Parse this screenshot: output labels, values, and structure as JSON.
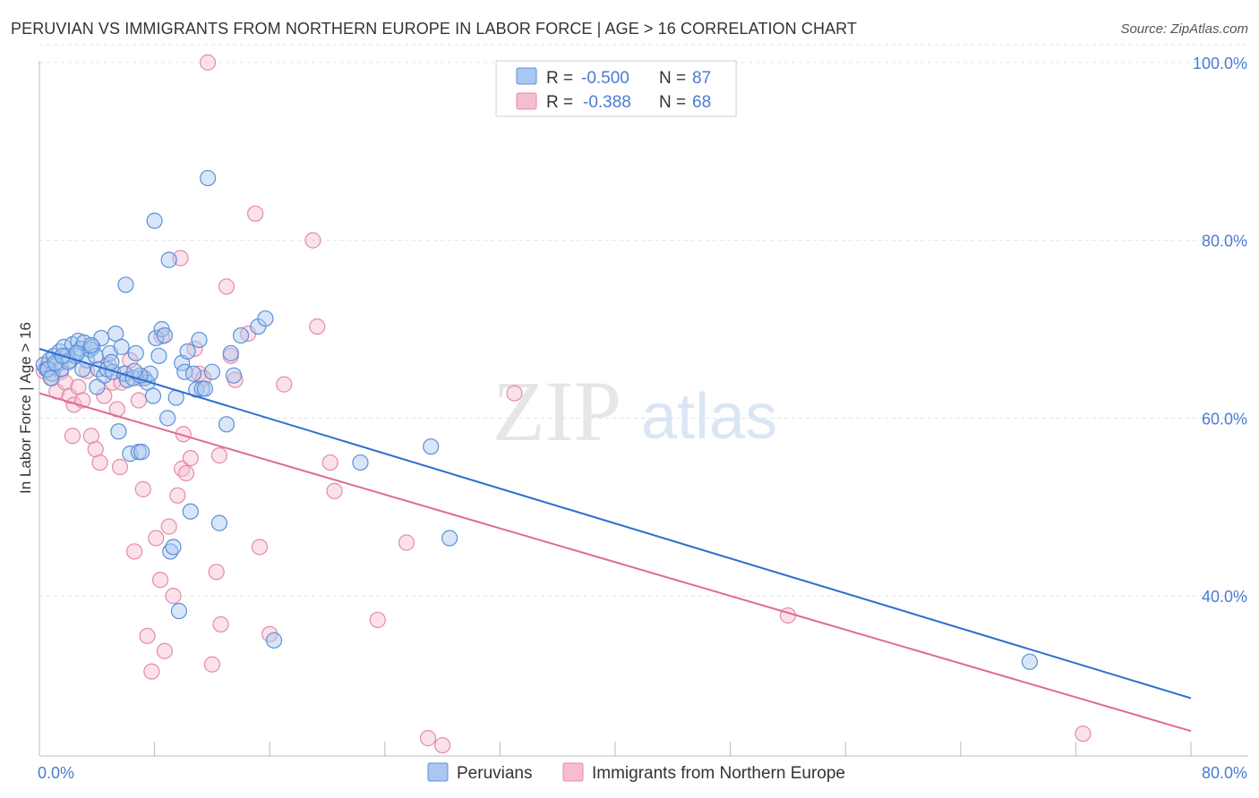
{
  "title": "PERUVIAN VS IMMIGRANTS FROM NORTHERN EUROPE IN LABOR FORCE | AGE > 16 CORRELATION CHART",
  "source": "Source: ZipAtlas.com",
  "watermark": {
    "zip": "ZIP",
    "atlas": "atlas"
  },
  "colors": {
    "peruvian_fill": "#a9c7f0",
    "peruvian_stroke": "#5b8fd8",
    "peruvian_line": "#2a6fd0",
    "immig_fill": "#f6bcd0",
    "immig_stroke": "#e58aab",
    "immig_line": "#e06a95",
    "axis_label": "#4a7bd4"
  },
  "legend": {
    "r_label": "R = ",
    "n_label": "N = ",
    "series": [
      {
        "r": "-0.500",
        "n": "87"
      },
      {
        "r": "-0.388",
        "n": "68"
      }
    ]
  },
  "chart_data": {
    "type": "scatter",
    "title": "PERUVIAN VS IMMIGRANTS FROM NORTHERN EUROPE IN LABOR FORCE | AGE > 16 CORRELATION CHART",
    "xlabel": "",
    "ylabel": "In Labor Force | Age > 16",
    "xlim": [
      0,
      80
    ],
    "ylim": [
      22,
      102
    ],
    "x_tick_labels": [
      "0.0%",
      "80.0%"
    ],
    "y_tick_labels": [
      "100.0%",
      "80.0%",
      "60.0%",
      "40.0%"
    ],
    "y_tick_values": [
      100,
      80,
      60,
      40
    ],
    "grid": true,
    "legend_position": "top-center",
    "series": [
      {
        "name": "Peruvians",
        "trendline": {
          "x": [
            0,
            80
          ],
          "y": [
            67.8,
            28.5
          ]
        },
        "points": [
          [
            0.3,
            66
          ],
          [
            0.5,
            65.5
          ],
          [
            0.7,
            66.5
          ],
          [
            0.9,
            65
          ],
          [
            1.0,
            67
          ],
          [
            1.2,
            66
          ],
          [
            1.4,
            67.5
          ],
          [
            1.5,
            65.5
          ],
          [
            1.7,
            68
          ],
          [
            1.9,
            67
          ],
          [
            2.1,
            66.5
          ],
          [
            2.3,
            68.3
          ],
          [
            2.5,
            67
          ],
          [
            2.7,
            68.7
          ],
          [
            2.9,
            67.8
          ],
          [
            3.1,
            68.5
          ],
          [
            3.3,
            66.5
          ],
          [
            3.5,
            67.7
          ],
          [
            3.7,
            68
          ],
          [
            3.9,
            67
          ],
          [
            4.1,
            65.5
          ],
          [
            4.3,
            69
          ],
          [
            4.5,
            64.8
          ],
          [
            4.7,
            65.5
          ],
          [
            4.9,
            67.3
          ],
          [
            5.1,
            65.2
          ],
          [
            5.3,
            69.5
          ],
          [
            5.5,
            58.5
          ],
          [
            5.7,
            68
          ],
          [
            5.9,
            65
          ],
          [
            6.1,
            64.3
          ],
          [
            6.3,
            56
          ],
          [
            6.5,
            64.5
          ],
          [
            6.7,
            67.3
          ],
          [
            6.9,
            56.2
          ],
          [
            7.1,
            56.2
          ],
          [
            7.3,
            64.5
          ],
          [
            7.5,
            64
          ],
          [
            7.7,
            65
          ],
          [
            7.9,
            62.5
          ],
          [
            8.1,
            69
          ],
          [
            8.3,
            67
          ],
          [
            8.5,
            70
          ],
          [
            8.7,
            69.3
          ],
          [
            8.9,
            60
          ],
          [
            9.1,
            45
          ],
          [
            9.3,
            45.5
          ],
          [
            9.5,
            62.3
          ],
          [
            9.7,
            38.3
          ],
          [
            9.9,
            66.2
          ],
          [
            10.1,
            65.2
          ],
          [
            10.3,
            67.5
          ],
          [
            10.5,
            49.5
          ],
          [
            10.7,
            65
          ],
          [
            10.9,
            63.2
          ],
          [
            11.1,
            68.8
          ],
          [
            11.3,
            63.3
          ],
          [
            11.5,
            63.3
          ],
          [
            11.7,
            87
          ],
          [
            12.0,
            65.2
          ],
          [
            12.5,
            48.2
          ],
          [
            13.0,
            59.3
          ],
          [
            13.3,
            67.3
          ],
          [
            13.5,
            64.8
          ],
          [
            14.0,
            69.3
          ],
          [
            15.2,
            70.3
          ],
          [
            15.7,
            71.2
          ],
          [
            16.3,
            35
          ],
          [
            22.3,
            55
          ],
          [
            27.2,
            56.8
          ],
          [
            28.5,
            46.5
          ],
          [
            68.8,
            32.6
          ],
          [
            8.0,
            82.2
          ],
          [
            9.0,
            77.8
          ],
          [
            6.0,
            75
          ],
          [
            2.0,
            66.3
          ],
          [
            0.6,
            65.5
          ],
          [
            1.1,
            66.2
          ],
          [
            4.0,
            63.5
          ],
          [
            3.0,
            65.5
          ],
          [
            7.0,
            64.8
          ],
          [
            5.0,
            66.3
          ],
          [
            2.6,
            67.3
          ],
          [
            1.6,
            67
          ],
          [
            3.6,
            68.2
          ],
          [
            0.8,
            64.5
          ],
          [
            6.6,
            65.3
          ]
        ]
      },
      {
        "name": "Immigrants from Northern Europe",
        "trendline": {
          "x": [
            0,
            80
          ],
          "y": [
            62.8,
            24.8
          ]
        },
        "points": [
          [
            0.3,
            65.3
          ],
          [
            0.6,
            66
          ],
          [
            0.9,
            64.5
          ],
          [
            1.2,
            63
          ],
          [
            1.5,
            65.2
          ],
          [
            1.8,
            64
          ],
          [
            2.1,
            62.5
          ],
          [
            2.4,
            61.5
          ],
          [
            2.7,
            63.5
          ],
          [
            3.0,
            62
          ],
          [
            3.3,
            65.3
          ],
          [
            3.6,
            58
          ],
          [
            3.9,
            56.5
          ],
          [
            4.2,
            55
          ],
          [
            4.5,
            62.5
          ],
          [
            4.8,
            66
          ],
          [
            5.1,
            64
          ],
          [
            5.4,
            61
          ],
          [
            5.7,
            64
          ],
          [
            6.0,
            65
          ],
          [
            6.3,
            66.5
          ],
          [
            6.6,
            45
          ],
          [
            6.9,
            62
          ],
          [
            7.2,
            52
          ],
          [
            7.5,
            35.5
          ],
          [
            7.8,
            31.5
          ],
          [
            8.1,
            46.5
          ],
          [
            8.4,
            41.8
          ],
          [
            8.7,
            33.8
          ],
          [
            9.0,
            47.8
          ],
          [
            9.3,
            40
          ],
          [
            9.6,
            51.3
          ],
          [
            9.9,
            54.3
          ],
          [
            10.2,
            53.8
          ],
          [
            10.5,
            55.5
          ],
          [
            10.8,
            67.8
          ],
          [
            11.1,
            65
          ],
          [
            11.4,
            64.5
          ],
          [
            11.7,
            100
          ],
          [
            12.0,
            32.3
          ],
          [
            12.3,
            42.7
          ],
          [
            12.6,
            36.8
          ],
          [
            13.0,
            74.8
          ],
          [
            13.3,
            67
          ],
          [
            13.6,
            64.3
          ],
          [
            14.5,
            69.5
          ],
          [
            15.0,
            83
          ],
          [
            15.3,
            45.5
          ],
          [
            16.0,
            35.7
          ],
          [
            17.0,
            63.8
          ],
          [
            19.0,
            80
          ],
          [
            19.3,
            70.3
          ],
          [
            20.2,
            55
          ],
          [
            20.5,
            51.8
          ],
          [
            23.5,
            37.3
          ],
          [
            25.5,
            46
          ],
          [
            27.0,
            24
          ],
          [
            28.0,
            23.2
          ],
          [
            33.0,
            62.8
          ],
          [
            52.0,
            37.8
          ],
          [
            72.5,
            24.5
          ],
          [
            8.5,
            69.2
          ],
          [
            5.6,
            54.5
          ],
          [
            9.8,
            78
          ],
          [
            7.0,
            64.5
          ],
          [
            12.5,
            55.8
          ],
          [
            2.3,
            58
          ],
          [
            10.0,
            58.2
          ]
        ]
      }
    ]
  },
  "bottom_legend": [
    {
      "label": "Peruvians"
    },
    {
      "label": "Immigrants from Northern Europe"
    }
  ]
}
